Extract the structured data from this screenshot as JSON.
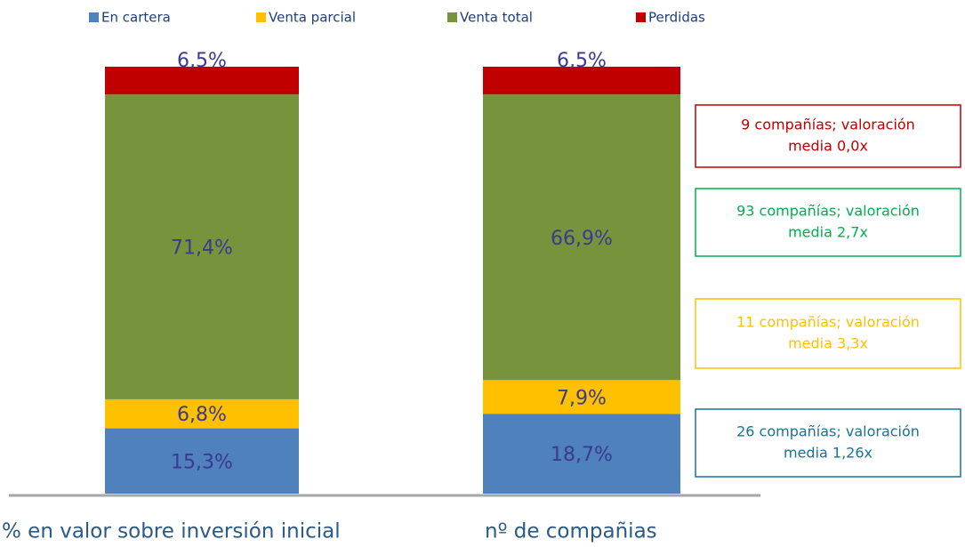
{
  "chart_data": {
    "type": "stacked_bar",
    "categories": [
      "% en valor sobre inversión inicial",
      "nº de compañias"
    ],
    "ylim": [
      0,
      100
    ],
    "series": [
      {
        "name": "En cartera",
        "color": "#4f81bd",
        "values": [
          15.3,
          18.7
        ],
        "value_labels": [
          "15,3%",
          "18,7%"
        ]
      },
      {
        "name": "Venta parcial",
        "color": "#ffc000",
        "values": [
          6.8,
          7.9
        ],
        "value_labels": [
          "6,8%",
          "7,9%"
        ]
      },
      {
        "name": "Venta total",
        "color": "#77933c",
        "values": [
          71.4,
          66.9
        ],
        "value_labels": [
          "71,4%",
          "66,9%"
        ]
      },
      {
        "name": "Perdidas",
        "color": "#c00000",
        "values": [
          6.5,
          6.5
        ],
        "value_labels": [
          "6,5%",
          "6,5%"
        ]
      }
    ],
    "annotations": [
      {
        "lines": [
          "9 compañías; valoración",
          "media 0,0x"
        ],
        "color": "#c00000"
      },
      {
        "lines": [
          "93 compañías; valoración",
          "media 2,7x"
        ],
        "color": "#00b050"
      },
      {
        "lines": [
          "11 compañías; valoración",
          "media 3,3x"
        ],
        "color": "#ffc000"
      },
      {
        "lines": [
          "26 compañías; valoración",
          "media 1,26x"
        ],
        "color": "#17739a"
      }
    ]
  }
}
